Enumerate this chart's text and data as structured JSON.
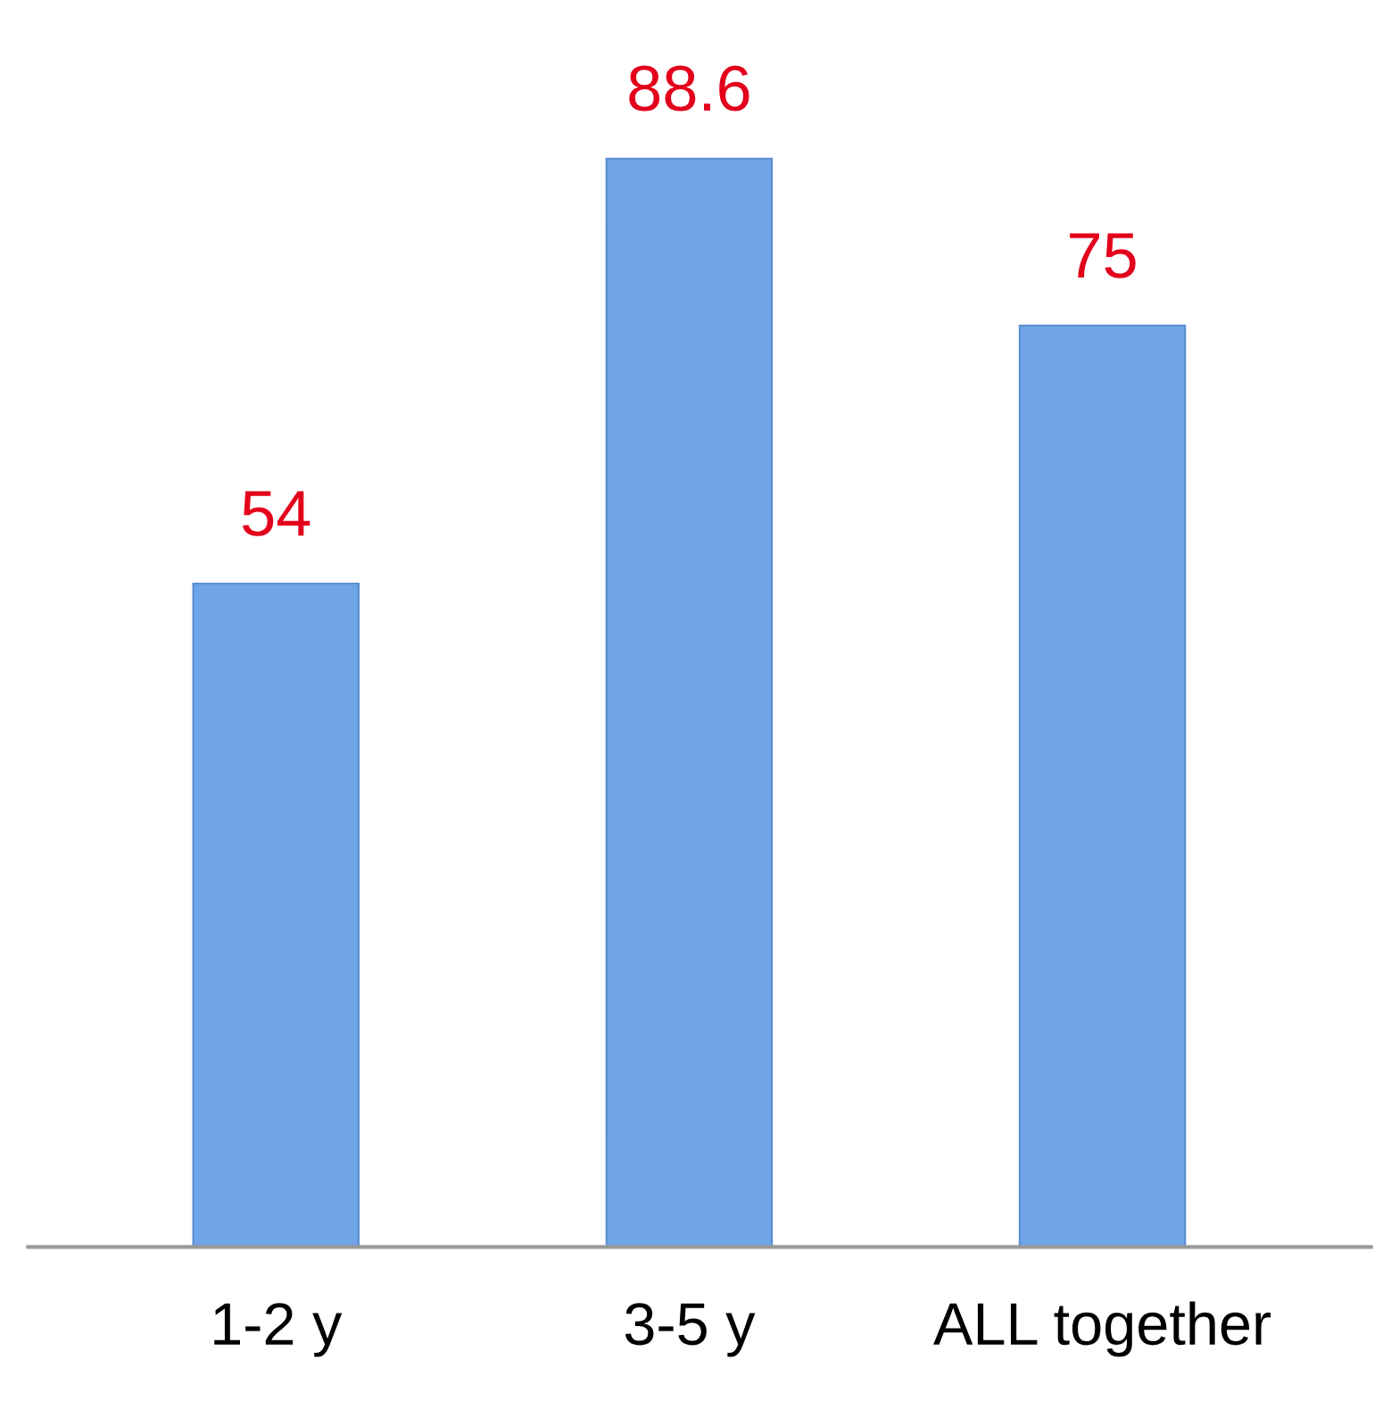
{
  "chart_data": {
    "type": "bar",
    "categories": [
      "1-2 y",
      "3-5 y",
      "ALL together"
    ],
    "values": [
      54,
      88.6,
      75
    ],
    "color": "#6fa5e8",
    "data_labels": true,
    "grid": false,
    "legend": false
  }
}
